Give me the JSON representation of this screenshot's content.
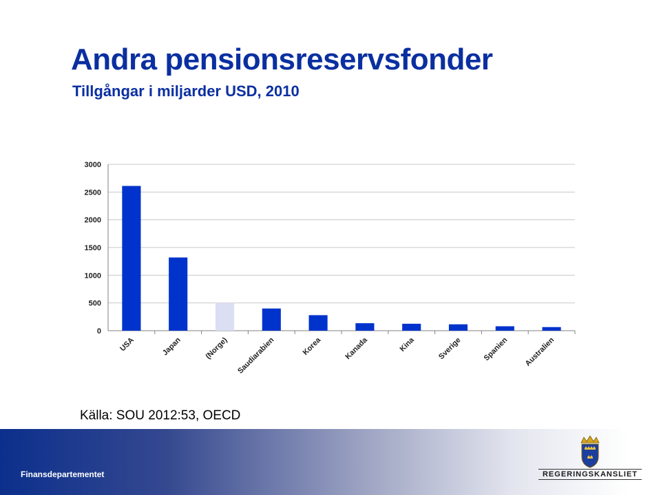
{
  "slide": {
    "title": "Andra pensionsreservsfonder",
    "subtitle": "Tillgångar i miljarder USD, 2010",
    "source": "Källa: SOU 2012:53, OECD",
    "footer_label": "Finansdepartementet",
    "logo_text": "REGERINGSKANSLIET"
  },
  "colors": {
    "title": "#0a2fa0",
    "bar": "#0033cc",
    "bar_highlight": "#dcdff3",
    "grid": "#c8c8c8"
  },
  "chart_data": {
    "type": "bar",
    "title": "",
    "xlabel": "",
    "ylabel": "",
    "categories": [
      "USA",
      "Japan",
      "(Norge)",
      "Saudiarabien",
      "Korea",
      "Kanada",
      "Kina",
      "Sverige",
      "Spanien",
      "Australien"
    ],
    "values": [
      2610,
      1320,
      500,
      400,
      280,
      135,
      125,
      115,
      80,
      65
    ],
    "highlighted_category": "(Norge)",
    "ylim": [
      0,
      3000
    ],
    "yticks": [
      0,
      500,
      1000,
      1500,
      2000,
      2500,
      3000
    ],
    "grid": true,
    "legend": "none"
  }
}
